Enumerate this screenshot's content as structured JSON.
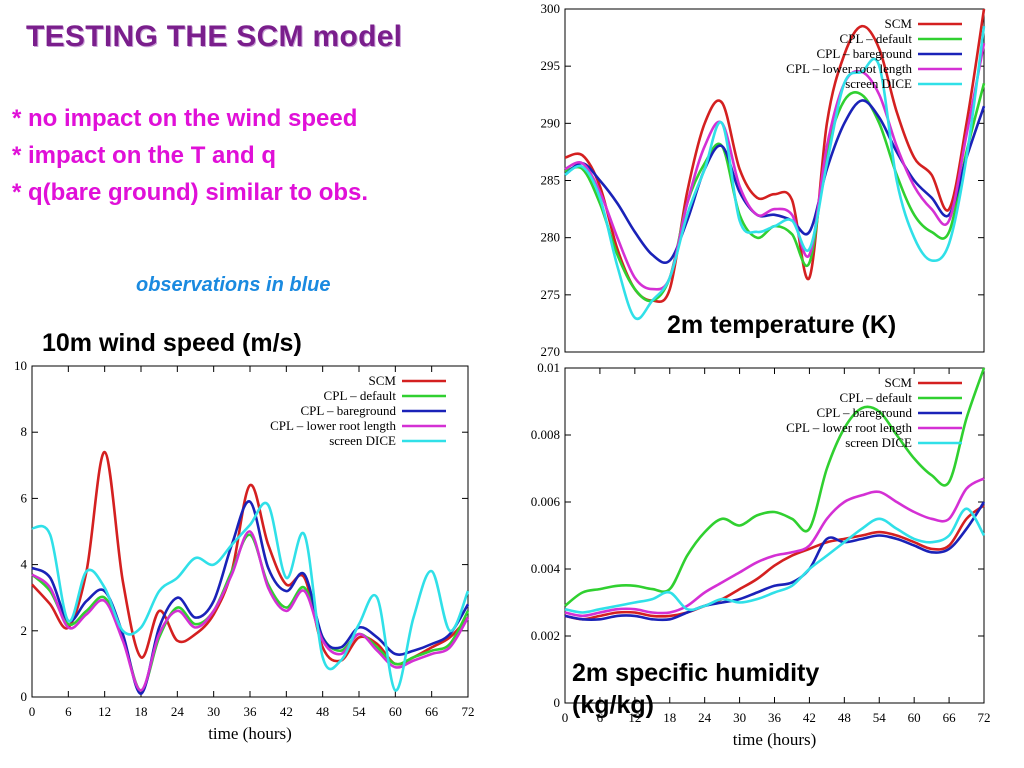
{
  "header": {
    "title": "TESTING THE SCM model",
    "bullets": [
      "* no impact on the wind speed",
      "* impact on the T and q",
      "* q(bare ground) similar to obs."
    ],
    "note": "observations in blue"
  },
  "panel_labels": {
    "wind": "10m wind speed (m/s)",
    "temp": "2m temperature (K)",
    "hum_line1": "2m specific humidity",
    "hum_line2": "(kg/kg)"
  },
  "series_colors": {
    "SCM": "#d42020",
    "CPL – default": "#30d030",
    "CPL – bareground": "#1a22b8",
    "CPL – lower root length": "#d430d4",
    "screen DICE": "#30e0e8"
  },
  "chart_data": [
    {
      "id": "wind",
      "type": "line",
      "xlabel": "time (hours)",
      "ylabel": "",
      "xlim": [
        0,
        72
      ],
      "ylim": [
        0,
        10
      ],
      "xticks": [
        0,
        6,
        12,
        18,
        24,
        30,
        36,
        42,
        48,
        54,
        60,
        66,
        72
      ],
      "yticks": [
        0,
        2,
        4,
        6,
        8,
        10
      ],
      "legend_position": "top-right",
      "grid": false,
      "x": [
        0,
        3,
        6,
        9,
        12,
        15,
        18,
        21,
        24,
        27,
        30,
        33,
        36,
        39,
        42,
        45,
        48,
        51,
        54,
        57,
        60,
        63,
        66,
        69,
        72
      ],
      "series": [
        {
          "name": "SCM",
          "values": [
            3.4,
            2.8,
            2.1,
            3.8,
            7.4,
            3.5,
            1.2,
            2.6,
            1.7,
            1.9,
            2.5,
            3.8,
            6.4,
            4.6,
            3.4,
            3.6,
            1.5,
            1.1,
            1.8,
            1.6,
            1.0,
            1.2,
            1.5,
            1.8,
            2.4
          ]
        },
        {
          "name": "CPL – default",
          "values": [
            3.7,
            3.2,
            2.2,
            2.6,
            3.0,
            1.8,
            0.2,
            1.8,
            2.7,
            2.2,
            2.6,
            3.8,
            4.9,
            3.4,
            2.7,
            3.3,
            1.8,
            1.4,
            1.9,
            1.5,
            1.0,
            1.2,
            1.4,
            1.6,
            2.6
          ]
        },
        {
          "name": "CPL – bareground",
          "values": [
            3.9,
            3.6,
            2.3,
            2.9,
            3.2,
            1.9,
            0.1,
            2.1,
            3.0,
            2.4,
            2.9,
            4.6,
            5.9,
            3.9,
            3.2,
            3.7,
            1.8,
            1.5,
            2.1,
            1.8,
            1.3,
            1.4,
            1.6,
            1.9,
            2.8
          ]
        },
        {
          "name": "CPL – lower root length",
          "values": [
            3.7,
            3.3,
            2.1,
            2.5,
            2.9,
            1.7,
            0.2,
            1.9,
            2.6,
            2.1,
            2.6,
            3.7,
            5.0,
            3.3,
            2.6,
            3.2,
            1.7,
            1.3,
            1.9,
            1.4,
            0.9,
            1.1,
            1.3,
            1.5,
            2.4
          ]
        },
        {
          "name": "screen DICE",
          "values": [
            5.1,
            4.9,
            2.3,
            3.8,
            3.3,
            2.0,
            2.1,
            3.2,
            3.6,
            4.2,
            4.0,
            4.6,
            5.2,
            5.8,
            3.6,
            4.9,
            1.2,
            1.1,
            2.2,
            3.0,
            0.2,
            2.4,
            3.8,
            2.0,
            3.2
          ]
        }
      ]
    },
    {
      "id": "temp",
      "type": "line",
      "xlabel": "",
      "ylabel": "",
      "xlim": [
        0,
        72
      ],
      "ylim": [
        270,
        300
      ],
      "yticks": [
        270,
        275,
        280,
        285,
        290,
        295,
        300
      ],
      "legend_position": "top-right",
      "grid": false,
      "x": [
        0,
        3,
        6,
        9,
        12,
        15,
        18,
        21,
        24,
        27,
        30,
        33,
        36,
        39,
        42,
        45,
        48,
        51,
        54,
        57,
        60,
        63,
        66,
        69,
        72
      ],
      "series": [
        {
          "name": "SCM",
          "values": [
            287.0,
            287.2,
            284.5,
            279.0,
            275.5,
            274.5,
            275.5,
            284.0,
            290.0,
            291.8,
            286.0,
            283.5,
            283.8,
            283.3,
            276.5,
            290.0,
            296.0,
            298.5,
            296.5,
            291.0,
            287.0,
            285.5,
            282.5,
            290.0,
            300.0
          ]
        },
        {
          "name": "CPL – default",
          "values": [
            285.8,
            286.0,
            283.0,
            278.5,
            275.5,
            274.5,
            276.5,
            283.0,
            286.5,
            288.0,
            282.0,
            280.0,
            281.0,
            280.3,
            277.8,
            287.5,
            292.0,
            292.5,
            290.0,
            285.5,
            282.0,
            280.5,
            280.5,
            287.5,
            293.5
          ]
        },
        {
          "name": "CPL – bareground",
          "values": [
            285.5,
            286.5,
            285.0,
            283.0,
            280.5,
            278.5,
            278.0,
            281.5,
            286.0,
            288.0,
            284.0,
            282.0,
            282.0,
            281.5,
            280.5,
            286.0,
            290.0,
            292.0,
            290.5,
            287.5,
            285.0,
            283.5,
            282.0,
            287.0,
            291.5
          ]
        },
        {
          "name": "CPL – lower root length",
          "values": [
            286.0,
            286.5,
            284.0,
            280.0,
            276.5,
            275.5,
            276.5,
            283.0,
            288.0,
            290.0,
            284.5,
            282.0,
            282.5,
            282.0,
            278.5,
            288.0,
            293.5,
            294.5,
            292.5,
            288.0,
            284.5,
            282.5,
            281.5,
            289.0,
            297.0
          ]
        },
        {
          "name": "screen DICE",
          "values": [
            285.5,
            286.2,
            283.5,
            277.5,
            273.0,
            274.5,
            276.5,
            282.0,
            286.0,
            290.0,
            281.5,
            280.5,
            281.0,
            281.5,
            279.0,
            286.5,
            293.5,
            294.5,
            295.0,
            285.0,
            280.0,
            278.0,
            279.5,
            287.0,
            298.5
          ]
        }
      ]
    },
    {
      "id": "humidity",
      "type": "line",
      "xlabel": "time (hours)",
      "ylabel": "",
      "xlim": [
        0,
        72
      ],
      "ylim": [
        0,
        0.01
      ],
      "xticks": [
        0,
        6,
        12,
        18,
        24,
        30,
        36,
        42,
        48,
        54,
        60,
        66,
        72
      ],
      "yticks": [
        0,
        0.002,
        0.004,
        0.006,
        0.008,
        0.01
      ],
      "legend_position": "top-right",
      "grid": false,
      "x": [
        0,
        3,
        6,
        9,
        12,
        15,
        18,
        21,
        24,
        27,
        30,
        33,
        36,
        39,
        42,
        45,
        48,
        51,
        54,
        57,
        60,
        63,
        66,
        69,
        72
      ],
      "series": [
        {
          "name": "SCM",
          "values": [
            0.0026,
            0.0025,
            0.0026,
            0.0027,
            0.0027,
            0.0026,
            0.0026,
            0.0027,
            0.0029,
            0.0031,
            0.0034,
            0.0037,
            0.0041,
            0.0044,
            0.0046,
            0.0048,
            0.0049,
            0.005,
            0.0051,
            0.005,
            0.0048,
            0.0046,
            0.0047,
            0.0055,
            0.0059
          ]
        },
        {
          "name": "CPL – default",
          "values": [
            0.0029,
            0.0033,
            0.0034,
            0.0035,
            0.0035,
            0.0034,
            0.0034,
            0.0044,
            0.0051,
            0.0055,
            0.0053,
            0.0056,
            0.0057,
            0.0055,
            0.0052,
            0.007,
            0.0082,
            0.0088,
            0.0087,
            0.008,
            0.0073,
            0.0068,
            0.0066,
            0.0085,
            0.01
          ]
        },
        {
          "name": "CPL – bareground",
          "values": [
            0.0026,
            0.0025,
            0.0025,
            0.0026,
            0.0026,
            0.0025,
            0.0025,
            0.0027,
            0.0029,
            0.003,
            0.0031,
            0.0033,
            0.0035,
            0.0036,
            0.004,
            0.0049,
            0.0048,
            0.0049,
            0.005,
            0.0049,
            0.0047,
            0.0045,
            0.0046,
            0.0052,
            0.006
          ]
        },
        {
          "name": "CPL – lower root length",
          "values": [
            0.0027,
            0.0026,
            0.0027,
            0.0028,
            0.0028,
            0.0027,
            0.0027,
            0.0029,
            0.0033,
            0.0036,
            0.0039,
            0.0042,
            0.0044,
            0.0045,
            0.0047,
            0.0055,
            0.006,
            0.0062,
            0.0063,
            0.006,
            0.0057,
            0.0055,
            0.0055,
            0.0064,
            0.0067
          ]
        },
        {
          "name": "screen DICE",
          "values": [
            0.0028,
            0.0027,
            0.0028,
            0.0029,
            0.003,
            0.0031,
            0.0033,
            0.0028,
            0.0029,
            0.0031,
            0.003,
            0.0031,
            0.0033,
            0.0035,
            0.004,
            0.0044,
            0.0048,
            0.0052,
            0.0055,
            0.0052,
            0.0049,
            0.0048,
            0.005,
            0.0058,
            0.005
          ]
        }
      ]
    }
  ]
}
